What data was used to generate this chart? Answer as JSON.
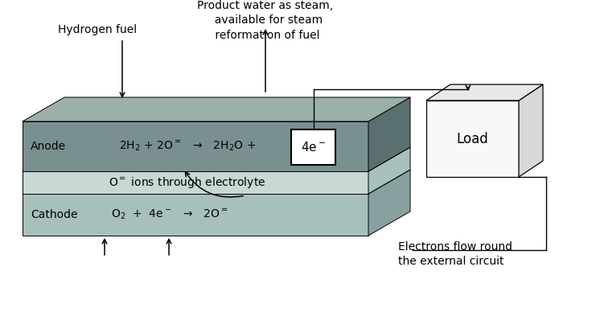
{
  "bg_color": "#ffffff",
  "anode_face_color": "#7a9090",
  "anode_side_color": "#5a7070",
  "anode_top_color": "#9ab0a8",
  "electrolyte_face_color": "#c8d8d4",
  "electrolyte_side_color": "#a8c0bc",
  "electrolyte_top_color": "#d8e8e4",
  "cathode_face_color": "#a8c0bc",
  "cathode_side_color": "#88a0a0",
  "cathode_top_color": "#b8d0cc",
  "load_face_color": "#f8f8f8",
  "load_side_color": "#d8d8d8",
  "load_top_color": "#e8e8e8",
  "box_4e_color": "#ffffff",
  "anode_label": "Anode",
  "cathode_label": "Cathode",
  "anode_eq": "2H$_2$ + 2O$^=$   →   2H$_2$O +",
  "cathode_eq": "O$_2$  +  4e$^-$   →   2O$^=$",
  "electrolyte_text": "O$^=$ ions through electrolyte",
  "box_4e_text": "4e$^-$",
  "load_text": "Load",
  "hydrogen_fuel_label": "Hydrogen fuel",
  "product_water_label": "Product water as steam,\n  available for steam\n reformation of fuel",
  "electrons_label": "Electrons flow round\nthe external circuit"
}
